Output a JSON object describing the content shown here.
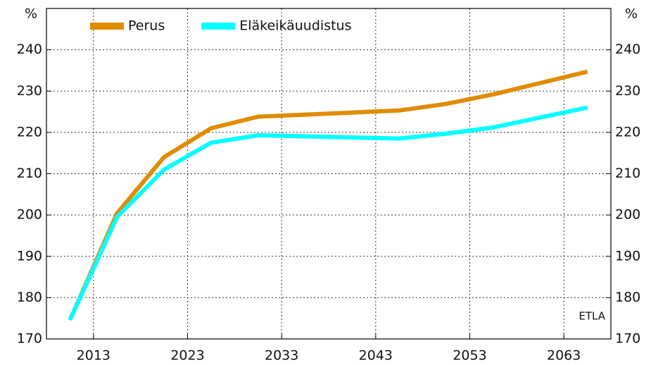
{
  "chart_data": {
    "type": "line",
    "y_unit": "%",
    "y2_unit": "%",
    "x": [
      2010.5,
      2015.5,
      2020.5,
      2025.5,
      2030.5,
      2045.5,
      2050.5,
      2055.5,
      2065.5
    ],
    "series": [
      {
        "name": "Perus",
        "color": "#e08c00",
        "values": [
          174.6,
          200.4,
          214,
          221,
          223.8,
          225.3,
          226.9,
          229.2,
          234.7
        ]
      },
      {
        "name": "Eläkeikäuudistus",
        "color": "#00ffff",
        "values": [
          174.6,
          199.5,
          211,
          217.5,
          219.3,
          218.5,
          219.7,
          221.2,
          226
        ]
      }
    ],
    "xlim": [
      2008,
      2068
    ],
    "xticks": [
      2013,
      2023,
      2033,
      2043,
      2053,
      2063
    ],
    "ylim": [
      170,
      250
    ],
    "yticks": [
      170,
      180,
      190,
      200,
      210,
      220,
      230,
      240
    ],
    "y2lim": [
      170,
      250
    ],
    "y2ticks": [
      170,
      180,
      190,
      200,
      210,
      220,
      230,
      240
    ],
    "grid": true,
    "legend": "top",
    "annotation": "ETLA"
  }
}
